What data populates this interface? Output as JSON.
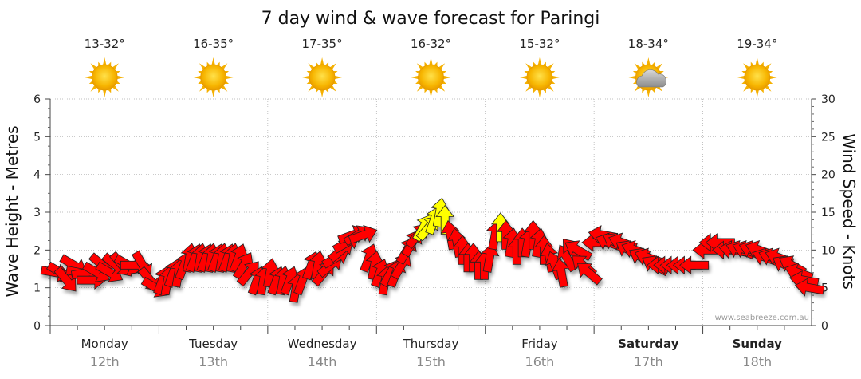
{
  "page": {
    "title": "7 day wind & wave forecast for Paringi",
    "credit": "www.seabreeze.com.au"
  },
  "colors": {
    "strong": "#ff0000",
    "moderate": "#ffff00",
    "outline": "#222222",
    "grid": "#aaaaaa",
    "sun": "#f5b000",
    "cloud": "#9a9a9a"
  },
  "chart_data": {
    "type": "wind-wave-forecast",
    "title": "7 day wind & wave forecast for Paringi",
    "y_left": {
      "label": "Wave Height - Metres",
      "range": [
        0,
        6
      ],
      "ticks": [
        "0",
        "1",
        "2",
        "3",
        "4",
        "5",
        "6"
      ]
    },
    "y_right": {
      "label": "Wind Speed - Knots",
      "range": [
        0,
        30
      ],
      "ticks": [
        "0",
        "5",
        "10",
        "15",
        "20",
        "25",
        "30"
      ]
    },
    "days": [
      {
        "name": "Monday",
        "date": "12th",
        "temp": "13-32°",
        "icon": "sun-icon",
        "bold": false
      },
      {
        "name": "Tuesday",
        "date": "13th",
        "temp": "16-35°",
        "icon": "sun-icon",
        "bold": false
      },
      {
        "name": "Wednesday",
        "date": "14th",
        "temp": "17-35°",
        "icon": "sun-icon",
        "bold": false
      },
      {
        "name": "Thursday",
        "date": "15th",
        "temp": "16-32°",
        "icon": "sun-icon",
        "bold": false
      },
      {
        "name": "Friday",
        "date": "16th",
        "temp": "15-32°",
        "icon": "sun-icon",
        "bold": false
      },
      {
        "name": "Saturday",
        "date": "17th",
        "temp": "18-34°",
        "icon": "partly-cloudy-icon",
        "bold": true
      },
      {
        "name": "Sunday",
        "date": "18th",
        "temp": "19-34°",
        "icon": "sun-icon",
        "bold": true
      }
    ],
    "wind_unit": "knots",
    "wind_series": [
      {
        "t": 0.05,
        "knots": 7,
        "dir": 280
      },
      {
        "t": 0.1,
        "knots": 7,
        "dir": 300
      },
      {
        "t": 0.15,
        "knots": 6,
        "dir": 320
      },
      {
        "t": 0.22,
        "knots": 8,
        "dir": 300
      },
      {
        "t": 0.28,
        "knots": 7,
        "dir": 280
      },
      {
        "t": 0.33,
        "knots": 7,
        "dir": 260
      },
      {
        "t": 0.38,
        "knots": 6,
        "dir": 270
      },
      {
        "t": 0.43,
        "knots": 7,
        "dir": 300
      },
      {
        "t": 0.48,
        "knots": 8,
        "dir": 310
      },
      {
        "t": 0.55,
        "knots": 7,
        "dir": 300
      },
      {
        "t": 0.6,
        "knots": 8,
        "dir": 310
      },
      {
        "t": 0.66,
        "knots": 8,
        "dir": 320
      },
      {
        "t": 0.72,
        "knots": 8,
        "dir": 300
      },
      {
        "t": 0.78,
        "knots": 8,
        "dir": 270
      },
      {
        "t": 0.85,
        "knots": 8,
        "dir": 330
      },
      {
        "t": 0.92,
        "knots": 6,
        "dir": 320
      },
      {
        "t": 0.97,
        "knots": 5,
        "dir": 300
      },
      {
        "t": 1.03,
        "knots": 6,
        "dir": 200
      },
      {
        "t": 1.08,
        "knots": 6,
        "dir": 190
      },
      {
        "t": 1.13,
        "knots": 7,
        "dir": 200
      },
      {
        "t": 1.18,
        "knots": 7,
        "dir": 190
      },
      {
        "t": 1.23,
        "knots": 8,
        "dir": 200
      },
      {
        "t": 1.28,
        "knots": 9,
        "dir": 190
      },
      {
        "t": 1.33,
        "knots": 9,
        "dir": 200
      },
      {
        "t": 1.38,
        "knots": 9,
        "dir": 190
      },
      {
        "t": 1.43,
        "knots": 9,
        "dir": 200
      },
      {
        "t": 1.48,
        "knots": 9,
        "dir": 190
      },
      {
        "t": 1.53,
        "knots": 9,
        "dir": 200
      },
      {
        "t": 1.58,
        "knots": 9,
        "dir": 190
      },
      {
        "t": 1.63,
        "knots": 9,
        "dir": 200
      },
      {
        "t": 1.68,
        "knots": 9,
        "dir": 190
      },
      {
        "t": 1.73,
        "knots": 9,
        "dir": 200
      },
      {
        "t": 1.78,
        "knots": 8,
        "dir": 210
      },
      {
        "t": 1.83,
        "knots": 7,
        "dir": 220
      },
      {
        "t": 1.9,
        "knots": 6,
        "dir": 200
      },
      {
        "t": 1.96,
        "knots": 6,
        "dir": 190
      },
      {
        "t": 2.02,
        "knots": 7,
        "dir": 190
      },
      {
        "t": 2.08,
        "knots": 6,
        "dir": 200
      },
      {
        "t": 2.14,
        "knots": 6,
        "dir": 190
      },
      {
        "t": 2.2,
        "knots": 6,
        "dir": 200
      },
      {
        "t": 2.26,
        "knots": 5,
        "dir": 190
      },
      {
        "t": 2.32,
        "knots": 6,
        "dir": 200
      },
      {
        "t": 2.4,
        "knots": 8,
        "dir": 200
      },
      {
        "t": 2.46,
        "knots": 8,
        "dir": 190
      },
      {
        "t": 2.52,
        "knots": 7,
        "dir": 220
      },
      {
        "t": 2.58,
        "knots": 8,
        "dir": 230
      },
      {
        "t": 2.63,
        "knots": 9,
        "dir": 240
      },
      {
        "t": 2.68,
        "knots": 10,
        "dir": 230
      },
      {
        "t": 2.73,
        "knots": 11,
        "dir": 240
      },
      {
        "t": 2.78,
        "knots": 12,
        "dir": 250
      },
      {
        "t": 2.83,
        "knots": 12,
        "dir": 240
      },
      {
        "t": 2.88,
        "knots": 12,
        "dir": 250
      },
      {
        "t": 2.93,
        "knots": 9,
        "dir": 200
      },
      {
        "t": 2.98,
        "knots": 8,
        "dir": 190
      },
      {
        "t": 3.03,
        "knots": 7,
        "dir": 200
      },
      {
        "t": 3.08,
        "knots": 6,
        "dir": 190
      },
      {
        "t": 3.13,
        "knots": 7,
        "dir": 210
      },
      {
        "t": 3.18,
        "knots": 7,
        "dir": 200
      },
      {
        "t": 3.23,
        "knots": 8,
        "dir": 210
      },
      {
        "t": 3.28,
        "knots": 10,
        "dir": 210
      },
      {
        "t": 3.33,
        "knots": 11,
        "dir": 210
      },
      {
        "t": 3.38,
        "knots": 12,
        "dir": 220
      },
      {
        "t": 3.43,
        "knots": 13,
        "dir": 210
      },
      {
        "t": 3.48,
        "knots": 13,
        "dir": 220
      },
      {
        "t": 3.53,
        "knots": 14,
        "dir": 200
      },
      {
        "t": 3.58,
        "knots": 15,
        "dir": 190
      },
      {
        "t": 3.63,
        "knots": 14,
        "dir": 180
      },
      {
        "t": 3.68,
        "knots": 12,
        "dir": 170
      },
      {
        "t": 3.74,
        "knots": 11,
        "dir": 170
      },
      {
        "t": 3.79,
        "knots": 10,
        "dir": 180
      },
      {
        "t": 3.84,
        "knots": 9,
        "dir": 180
      },
      {
        "t": 3.89,
        "knots": 9,
        "dir": 180
      },
      {
        "t": 3.94,
        "knots": 8,
        "dir": 180
      },
      {
        "t": 3.99,
        "knots": 8,
        "dir": 180
      },
      {
        "t": 4.04,
        "knots": 9,
        "dir": 190
      },
      {
        "t": 4.09,
        "knots": 12,
        "dir": 190
      },
      {
        "t": 4.14,
        "knots": 13,
        "dir": 180
      },
      {
        "t": 4.19,
        "knots": 12,
        "dir": 180
      },
      {
        "t": 4.24,
        "knots": 11,
        "dir": 190
      },
      {
        "t": 4.29,
        "knots": 10,
        "dir": 180
      },
      {
        "t": 4.34,
        "knots": 11,
        "dir": 180
      },
      {
        "t": 4.39,
        "knots": 11,
        "dir": 190
      },
      {
        "t": 4.44,
        "knots": 12,
        "dir": 180
      },
      {
        "t": 4.49,
        "knots": 11,
        "dir": 190
      },
      {
        "t": 4.54,
        "knots": 10,
        "dir": 180
      },
      {
        "t": 4.59,
        "knots": 9,
        "dir": 170
      },
      {
        "t": 4.64,
        "knots": 8,
        "dir": 160
      },
      {
        "t": 4.7,
        "knots": 7,
        "dir": 170
      },
      {
        "t": 4.75,
        "knots": 9,
        "dir": 150
      },
      {
        "t": 4.8,
        "knots": 10,
        "dir": 140
      },
      {
        "t": 4.85,
        "knots": 10,
        "dir": 120
      },
      {
        "t": 4.9,
        "knots": 8,
        "dir": 130
      },
      {
        "t": 4.95,
        "knots": 7,
        "dir": 130
      },
      {
        "t": 5.02,
        "knots": 11,
        "dir": 90
      },
      {
        "t": 5.08,
        "knots": 12,
        "dir": 100
      },
      {
        "t": 5.14,
        "knots": 11,
        "dir": 110
      },
      {
        "t": 5.2,
        "knots": 11,
        "dir": 120
      },
      {
        "t": 5.26,
        "knots": 11,
        "dir": 110
      },
      {
        "t": 5.32,
        "knots": 10,
        "dir": 120
      },
      {
        "t": 5.38,
        "knots": 10,
        "dir": 110
      },
      {
        "t": 5.44,
        "knots": 9,
        "dir": 120
      },
      {
        "t": 5.5,
        "knots": 9,
        "dir": 110
      },
      {
        "t": 5.56,
        "knots": 8,
        "dir": 120
      },
      {
        "t": 5.62,
        "knots": 8,
        "dir": 90
      },
      {
        "t": 5.68,
        "knots": 8,
        "dir": 90
      },
      {
        "t": 5.74,
        "knots": 8,
        "dir": 90
      },
      {
        "t": 5.8,
        "knots": 8,
        "dir": 90
      },
      {
        "t": 5.86,
        "knots": 8,
        "dir": 90
      },
      {
        "t": 5.92,
        "knots": 8,
        "dir": 90
      },
      {
        "t": 6.04,
        "knots": 10,
        "dir": 90
      },
      {
        "t": 6.1,
        "knots": 11,
        "dir": 90
      },
      {
        "t": 6.16,
        "knots": 11,
        "dir": 90
      },
      {
        "t": 6.22,
        "knots": 10,
        "dir": 90
      },
      {
        "t": 6.28,
        "knots": 10,
        "dir": 100
      },
      {
        "t": 6.34,
        "knots": 10,
        "dir": 110
      },
      {
        "t": 6.4,
        "knots": 10,
        "dir": 110
      },
      {
        "t": 6.46,
        "knots": 10,
        "dir": 110
      },
      {
        "t": 6.52,
        "knots": 10,
        "dir": 110
      },
      {
        "t": 6.58,
        "knots": 9,
        "dir": 110
      },
      {
        "t": 6.64,
        "knots": 9,
        "dir": 110
      },
      {
        "t": 6.7,
        "knots": 9,
        "dir": 110
      },
      {
        "t": 6.76,
        "knots": 8,
        "dir": 120
      },
      {
        "t": 6.82,
        "knots": 8,
        "dir": 120
      },
      {
        "t": 6.88,
        "knots": 7,
        "dir": 110
      },
      {
        "t": 6.93,
        "knots": 6,
        "dir": 100
      },
      {
        "t": 6.98,
        "knots": 5,
        "dir": 100
      }
    ]
  }
}
